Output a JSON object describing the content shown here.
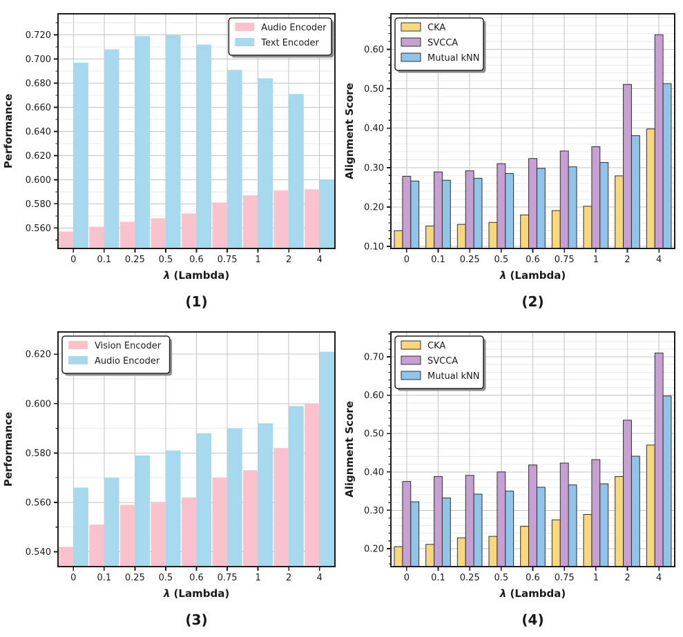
{
  "figure": {
    "background": "#ffffff",
    "captions": [
      "(1)",
      "(2)",
      "(3)",
      "(4)"
    ]
  },
  "style": {
    "grid_major_color": "#c2c2c2",
    "grid_minor_color": "#eaeaea",
    "spine_color": "#1a1a1a",
    "tick_color": "#1a1a1a",
    "text_color": "#1a1a1a",
    "bar_edge_color": "#2e2e2e",
    "legend_bg": "#ffffff",
    "legend_border": "#222222",
    "legend_shadow": "#8f8f8f"
  },
  "chart_data": [
    {
      "type": "bar",
      "caption": "(1)",
      "xlabel": "λ (Lambda)",
      "ylabel": "Performance",
      "categories": [
        "0",
        "0.1",
        "0.25",
        "0.5",
        "0.6",
        "0.75",
        "1",
        "2",
        "4"
      ],
      "series": [
        {
          "name": "Audio Encoder",
          "color": "#FAC2CC",
          "edged": false,
          "values": [
            0.557,
            0.561,
            0.565,
            0.568,
            0.572,
            0.581,
            0.587,
            0.591,
            0.592
          ]
        },
        {
          "name": "Text Encoder",
          "color": "#A6D9EE",
          "edged": false,
          "values": [
            0.697,
            0.708,
            0.719,
            0.72,
            0.712,
            0.691,
            0.684,
            0.671,
            0.6
          ]
        }
      ],
      "ylim": [
        0.543,
        0.7375
      ],
      "yticks": [
        0.56,
        0.58,
        0.6,
        0.62,
        0.64,
        0.66,
        0.68,
        0.7,
        0.72
      ],
      "ytick_decimals": 3,
      "y_minor_step": 0.01,
      "grid": true,
      "legend_pos": "top-right"
    },
    {
      "type": "bar",
      "caption": "(2)",
      "xlabel": "λ (Lambda)",
      "ylabel": "Alignment Score",
      "categories": [
        "0",
        "0.1",
        "0.25",
        "0.5",
        "0.6",
        "0.75",
        "1",
        "2",
        "4"
      ],
      "series": [
        {
          "name": "CKA",
          "color": "#F8D87C",
          "edged": true,
          "values": [
            0.14,
            0.152,
            0.156,
            0.161,
            0.18,
            0.191,
            0.202,
            0.279,
            0.398
          ]
        },
        {
          "name": "SVCCA",
          "color": "#C69FD3",
          "edged": true,
          "values": [
            0.278,
            0.289,
            0.292,
            0.31,
            0.323,
            0.342,
            0.353,
            0.511,
            0.637
          ]
        },
        {
          "name": "Mutual kNN",
          "color": "#90C5E9",
          "edged": true,
          "values": [
            0.266,
            0.268,
            0.273,
            0.285,
            0.298,
            0.302,
            0.313,
            0.381,
            0.513
          ]
        }
      ],
      "ylim": [
        0.095,
        0.69
      ],
      "yticks": [
        0.1,
        0.2,
        0.3,
        0.4,
        0.5,
        0.6
      ],
      "ytick_decimals": 2,
      "y_minor_step": 0.02,
      "grid": true,
      "legend_pos": "top-left"
    },
    {
      "type": "bar",
      "caption": "(3)",
      "xlabel": "λ (Lambda)",
      "ylabel": "Performance",
      "categories": [
        "0",
        "0.1",
        "0.25",
        "0.5",
        "0.6",
        "0.75",
        "1",
        "2",
        "4"
      ],
      "series": [
        {
          "name": "Vision Encoder",
          "color": "#FAC2CC",
          "edged": false,
          "values": [
            0.542,
            0.551,
            0.559,
            0.56,
            0.562,
            0.57,
            0.573,
            0.582,
            0.6
          ]
        },
        {
          "name": "Audio Encoder",
          "color": "#A6D9EE",
          "edged": false,
          "values": [
            0.566,
            0.57,
            0.579,
            0.581,
            0.588,
            0.59,
            0.592,
            0.599,
            0.621
          ]
        }
      ],
      "ylim": [
        0.534,
        0.629
      ],
      "yticks": [
        0.54,
        0.56,
        0.58,
        0.6,
        0.62
      ],
      "ytick_decimals": 3,
      "y_minor_step": 0.01,
      "grid": true,
      "legend_pos": "top-left"
    },
    {
      "type": "bar",
      "caption": "(4)",
      "xlabel": "λ (Lambda)",
      "ylabel": "Alignment Score",
      "categories": [
        "0",
        "0.1",
        "0.25",
        "0.5",
        "0.6",
        "0.75",
        "1",
        "2",
        "4"
      ],
      "series": [
        {
          "name": "CKA",
          "color": "#F8D87C",
          "edged": true,
          "values": [
            0.205,
            0.211,
            0.228,
            0.232,
            0.258,
            0.275,
            0.289,
            0.388,
            0.47
          ]
        },
        {
          "name": "SVCCA",
          "color": "#C69FD3",
          "edged": true,
          "values": [
            0.375,
            0.388,
            0.391,
            0.4,
            0.418,
            0.423,
            0.432,
            0.535,
            0.71
          ]
        },
        {
          "name": "Mutual kNN",
          "color": "#90C5E9",
          "edged": true,
          "values": [
            0.322,
            0.332,
            0.342,
            0.35,
            0.36,
            0.366,
            0.369,
            0.441,
            0.598
          ]
        }
      ],
      "ylim": [
        0.153,
        0.765
      ],
      "yticks": [
        0.2,
        0.3,
        0.4,
        0.5,
        0.6,
        0.7
      ],
      "ytick_decimals": 2,
      "y_minor_step": 0.02,
      "grid": true,
      "legend_pos": "top-left"
    }
  ]
}
